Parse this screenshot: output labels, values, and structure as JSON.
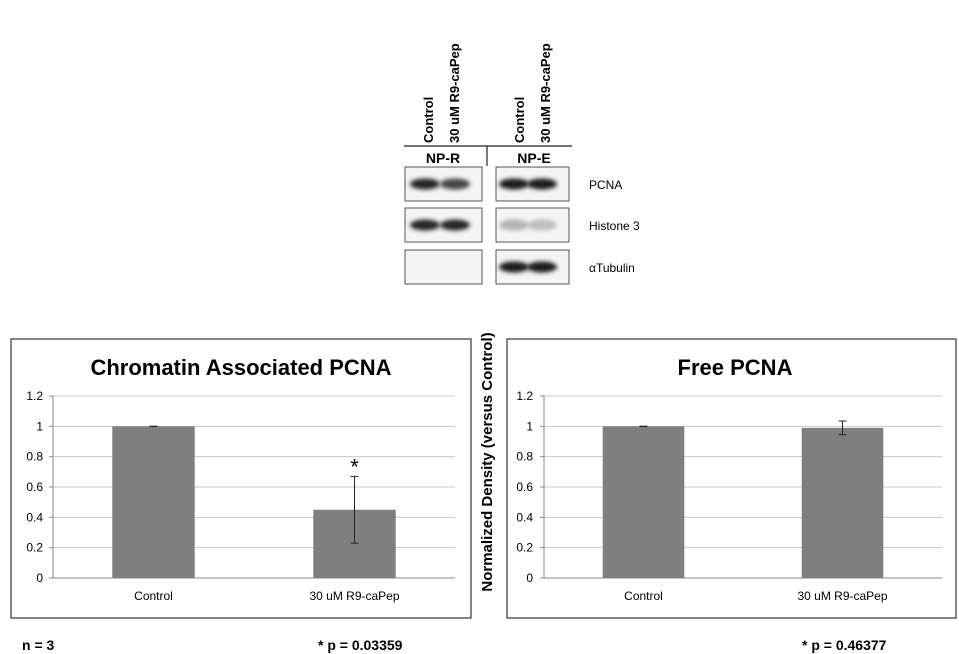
{
  "blot": {
    "lanes": [
      "Control",
      "30 uM R9-caPep",
      "Control",
      "30 uM R9-caPep"
    ],
    "groups": [
      "NP-R",
      "NP-E"
    ],
    "rows": [
      "PCNA",
      "Histone 3",
      "αTubulin"
    ],
    "band_intensity": [
      [
        0.95,
        0.8,
        1.0,
        1.0
      ],
      [
        0.95,
        0.95,
        0.25,
        0.2
      ],
      [
        0.05,
        0.05,
        1.0,
        1.0
      ]
    ]
  },
  "shared_ylabel": "Normalized Density (versus Control)",
  "chart_data": [
    {
      "type": "bar",
      "title": "Chromatin Associated PCNA",
      "categories": [
        "Control",
        "30 uM R9-caPep"
      ],
      "values": [
        1.0,
        0.45
      ],
      "error": [
        0.0,
        0.22
      ],
      "significance": [
        "",
        "*"
      ],
      "ylim": [
        0,
        1.2
      ],
      "yticks": [
        "0",
        "0.2",
        "0.4",
        "0.6",
        "0.8",
        "1",
        "1.2"
      ],
      "grid": true,
      "bar_color": "#7f7f7f"
    },
    {
      "type": "bar",
      "title": "Free PCNA",
      "categories": [
        "Control",
        "30 uM R9-caPep"
      ],
      "values": [
        1.0,
        0.99
      ],
      "error": [
        0.0,
        0.045
      ],
      "significance": [
        "",
        ""
      ],
      "ylim": [
        0,
        1.2
      ],
      "yticks": [
        "0",
        "0.2",
        "0.4",
        "0.6",
        "0.8",
        "1",
        "1.2"
      ],
      "grid": true,
      "bar_color": "#7f7f7f"
    }
  ],
  "footnotes": {
    "n": "n = 3",
    "p_left": "* p = 0.03359",
    "p_right": "* p = 0.46377"
  }
}
